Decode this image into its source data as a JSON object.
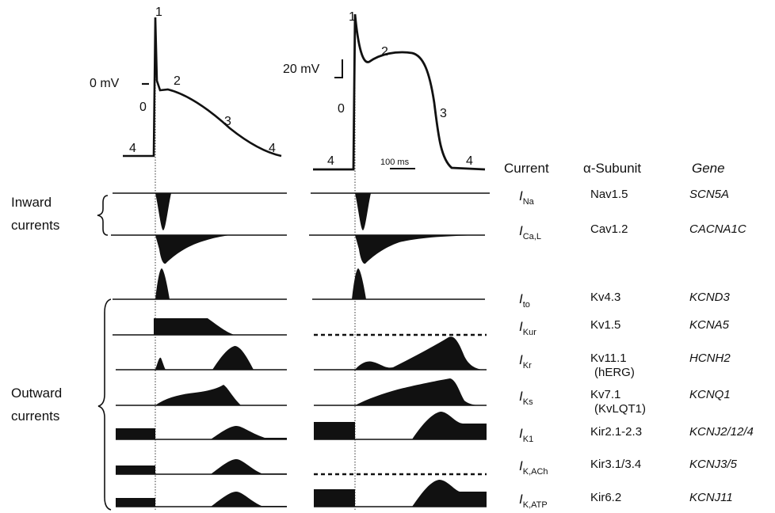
{
  "ap_labels": {
    "zero_mv": "0 mV",
    "scale_mv": "20 mV",
    "scale_ms": "100 ms",
    "phase_1": "1",
    "phase_2": "2",
    "phase_0": "0",
    "phase_3": "3",
    "phase_4": "4"
  },
  "group_labels": {
    "inward": [
      "Inward",
      "currents"
    ],
    "outward": [
      "Outward",
      "currents"
    ]
  },
  "table_headers": {
    "current": "Current",
    "subunit": "α-Subunit",
    "gene": "Gene"
  },
  "rows": [
    {
      "current_main": "I",
      "current_sub": "Na",
      "subunit": "Nav1.5",
      "subunit_extra": "",
      "gene": "SCN5A"
    },
    {
      "current_main": "I",
      "current_sub": "Ca,L",
      "subunit": "Cav1.2",
      "subunit_extra": "",
      "gene": "CACNA1C"
    },
    {
      "current_main": "I",
      "current_sub": "to",
      "subunit": "Kv4.3",
      "subunit_extra": "",
      "gene": "KCND3"
    },
    {
      "current_main": "I",
      "current_sub": "Kur",
      "subunit": "Kv1.5",
      "subunit_extra": "",
      "gene": "KCNA5"
    },
    {
      "current_main": "I",
      "current_sub": "Kr",
      "subunit": "Kv11.1",
      "subunit_extra": "(hERG)",
      "gene": "HCNH2"
    },
    {
      "current_main": "I",
      "current_sub": "Ks",
      "subunit": "Kv7.1",
      "subunit_extra": "(KvLQT1)",
      "gene": "KCNQ1"
    },
    {
      "current_main": "I",
      "current_sub": "K1",
      "subunit": "Kir2.1-2.3",
      "subunit_extra": "",
      "gene": "KCNJ2/12/4"
    },
    {
      "current_main": "I",
      "current_sub": "K,ACh",
      "subunit": "Kir3.1/3.4",
      "subunit_extra": "",
      "gene": "KCNJ3/5"
    },
    {
      "current_main": "I",
      "current_sub": "K,ATP",
      "subunit": "Kir6.2",
      "subunit_extra": "",
      "gene": "KCNJ11"
    }
  ]
}
